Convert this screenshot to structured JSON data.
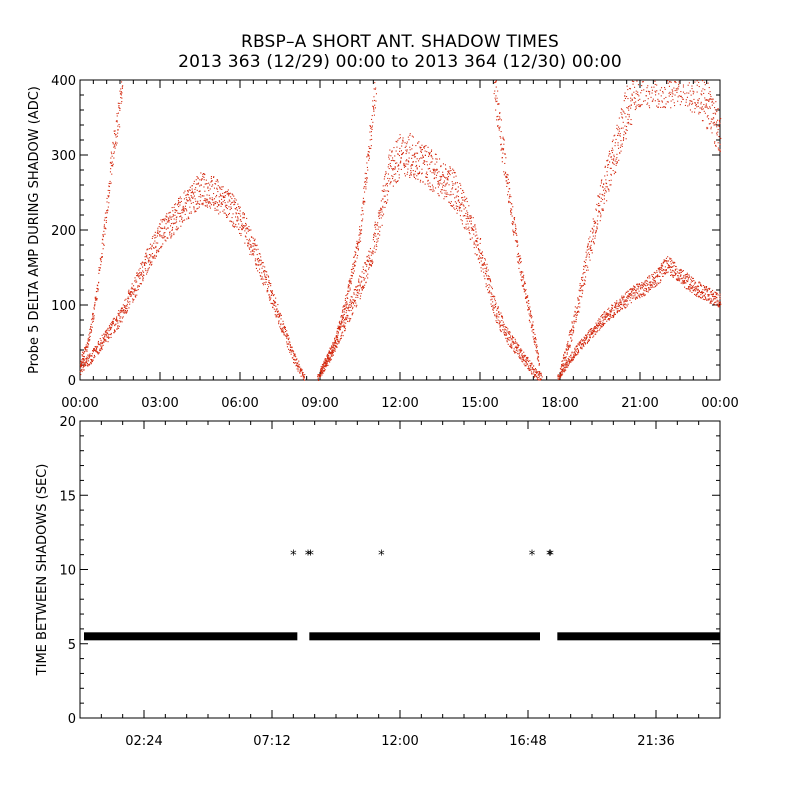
{
  "title_line1": "RBSP–A SHORT ANT. SHADOW TIMES",
  "title_line2": "2013 363 (12/29) 00:00 to 2013 364 (12/30) 00:00",
  "colors": {
    "amp_points": "#d42a10",
    "shadow_points": "#000000"
  },
  "chart_data": [
    {
      "type": "scatter",
      "ylabel": "Probe 5 DELTA AMP DURING SHADOW (ADC)",
      "xlim_hours": [
        0,
        24
      ],
      "ylim": [
        0,
        400
      ],
      "x_tick_labels": [
        "00:00",
        "03:00",
        "06:00",
        "09:00",
        "12:00",
        "15:00",
        "18:00",
        "21:00",
        "00:00"
      ],
      "y_tick_labels": [
        "0",
        "100",
        "200",
        "300",
        "400"
      ],
      "grid": false,
      "series": [
        {
          "lower_band": [
            [
              0.0,
              15
            ],
            [
              0.5,
              35
            ],
            [
              1.0,
              60
            ],
            [
              1.5,
              85
            ],
            [
              2.0,
              120
            ],
            [
              2.5,
              160
            ],
            [
              3.0,
              195
            ],
            [
              3.5,
              215
            ],
            [
              4.0,
              235
            ],
            [
              4.5,
              255
            ],
            [
              5.0,
              250
            ],
            [
              5.5,
              235
            ],
            [
              6.0,
              215
            ],
            [
              6.5,
              175
            ],
            [
              7.0,
              130
            ],
            [
              7.5,
              80
            ],
            [
              8.0,
              30
            ],
            [
              8.4,
              5
            ]
          ],
          "upper_band": [
            [
              0.0,
              25
            ],
            [
              0.3,
              50
            ],
            [
              0.6,
              110
            ],
            [
              0.9,
              200
            ],
            [
              1.2,
              300
            ],
            [
              1.5,
              370
            ],
            [
              1.6,
              400
            ]
          ],
          "lower_band_2": [
            [
              8.9,
              3
            ],
            [
              9.3,
              30
            ],
            [
              9.7,
              60
            ],
            [
              10.0,
              85
            ],
            [
              10.3,
              110
            ],
            [
              10.6,
              135
            ],
            [
              10.9,
              165
            ],
            [
              11.3,
              230
            ],
            [
              11.6,
              280
            ],
            [
              12.0,
              300
            ],
            [
              12.5,
              300
            ],
            [
              13.0,
              285
            ],
            [
              13.5,
              270
            ],
            [
              14.0,
              255
            ],
            [
              14.5,
              220
            ],
            [
              15.0,
              170
            ],
            [
              15.3,
              130
            ],
            [
              15.6,
              90
            ],
            [
              16.0,
              60
            ],
            [
              16.5,
              35
            ],
            [
              17.0,
              12
            ],
            [
              17.3,
              3
            ]
          ],
          "upper_band_2": [
            [
              9.0,
              10
            ],
            [
              9.5,
              45
            ],
            [
              10.0,
              110
            ],
            [
              10.5,
              200
            ],
            [
              10.8,
              300
            ],
            [
              11.1,
              400
            ]
          ],
          "descending_2": [
            [
              15.5,
              400
            ],
            [
              15.8,
              320
            ],
            [
              16.2,
              220
            ],
            [
              16.5,
              150
            ],
            [
              16.9,
              80
            ],
            [
              17.2,
              25
            ]
          ],
          "lower_band_3": [
            [
              17.9,
              3
            ],
            [
              18.3,
              25
            ],
            [
              18.7,
              45
            ],
            [
              19.2,
              65
            ],
            [
              19.7,
              85
            ],
            [
              20.2,
              100
            ],
            [
              20.7,
              115
            ],
            [
              21.2,
              125
            ],
            [
              21.7,
              140
            ],
            [
              22.0,
              155
            ],
            [
              22.5,
              140
            ],
            [
              23.0,
              125
            ],
            [
              23.5,
              115
            ],
            [
              24.0,
              105
            ]
          ],
          "upper_band_3": [
            [
              18.0,
              10
            ],
            [
              18.5,
              75
            ],
            [
              19.0,
              160
            ],
            [
              19.5,
              240
            ],
            [
              20.0,
              300
            ],
            [
              20.5,
              360
            ],
            [
              20.9,
              400
            ],
            [
              22.5,
              400
            ],
            [
              23.2,
              390
            ],
            [
              24.0,
              330
            ]
          ]
        }
      ]
    },
    {
      "type": "scatter",
      "ylabel": "TIME BETWEEN SHADOWS (SEC)",
      "xlim_hours": [
        0,
        24
      ],
      "ylim": [
        0,
        20
      ],
      "x_tick_labels": [
        "02:24",
        "07:12",
        "12:00",
        "16:48",
        "21:36"
      ],
      "x_tick_hours": [
        2.4,
        7.2,
        12.0,
        16.8,
        21.6
      ],
      "y_tick_labels": [
        "0",
        "5",
        "10",
        "15",
        "20"
      ],
      "grid": false,
      "series": [
        {
          "baseline_value": 5.5,
          "baseline_segments_hours": [
            [
              0.15,
              8.15
            ],
            [
              8.6,
              17.25
            ],
            [
              17.9,
              24.0
            ]
          ],
          "outliers": [
            [
              8.0,
              11.0
            ],
            [
              8.55,
              11.0
            ],
            [
              8.65,
              11.0
            ],
            [
              11.3,
              11.0
            ],
            [
              16.95,
              11.0
            ],
            [
              17.6,
              11.0
            ],
            [
              17.65,
              11.0
            ]
          ]
        }
      ]
    }
  ]
}
